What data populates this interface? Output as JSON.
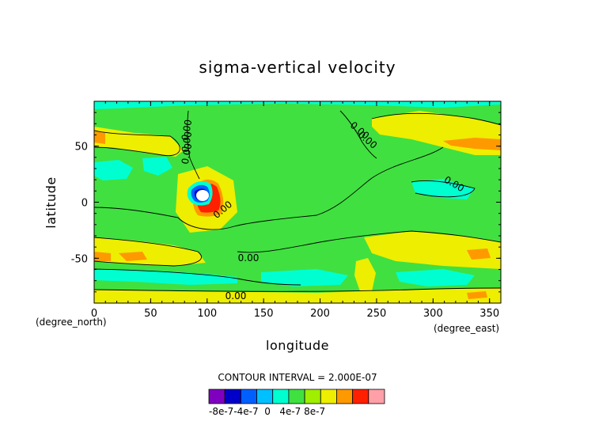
{
  "chart_data": {
    "type": "heatmap",
    "title": "sigma-vertical velocity",
    "xlabel": "longitude",
    "ylabel": "latitude",
    "x_unit": "(degree_east)",
    "y_unit": "(degree_north)",
    "xlim": [
      0,
      360
    ],
    "ylim": [
      -90,
      90
    ],
    "x_ticks": [
      0,
      50,
      100,
      150,
      200,
      250,
      300,
      350
    ],
    "y_ticks": [
      50,
      0,
      -50
    ],
    "contour_interval_text": "CONTOUR INTERVAL = 2.000E-07",
    "contour_labels": [
      "0.00",
      "0.00",
      "0.00",
      "0.00",
      "0.00",
      "0.00",
      "0.00",
      "0.00",
      "0.00"
    ],
    "colorbar": {
      "levels": [
        -1e-06,
        -8e-07,
        -6e-07,
        -4e-07,
        -2e-07,
        0,
        2e-07,
        4e-07,
        6e-07,
        8e-07,
        1e-06
      ],
      "colors": [
        "#8000c0",
        "#0000c8",
        "#0060ff",
        "#00c0ff",
        "#00ffd0",
        "#40e040",
        "#a0ee00",
        "#eeee00",
        "#ff9900",
        "#ff2000",
        "#ffa0a8"
      ],
      "labels": [
        "-8e-7",
        "-4e-7",
        "0",
        "4e-7",
        "8e-7"
      ],
      "label_text": "-8e-7-4e-7  0   4e-7 8e-7"
    },
    "features": [
      {
        "name": "background",
        "value": 1e-07
      },
      {
        "name": "west-cyan-band",
        "value": -1e-07
      },
      {
        "name": "northern-jet-yellow",
        "value": 3e-07
      },
      {
        "name": "northern-jet-orange",
        "value": 5e-07
      },
      {
        "name": "southern-cyan-band",
        "value": -1e-07
      },
      {
        "name": "southern-yellow-band",
        "value": 3e-07
      },
      {
        "name": "tibet-dipole-positive",
        "value": 9e-07
      },
      {
        "name": "tibet-dipole-negative",
        "value": -9e-07
      }
    ]
  }
}
